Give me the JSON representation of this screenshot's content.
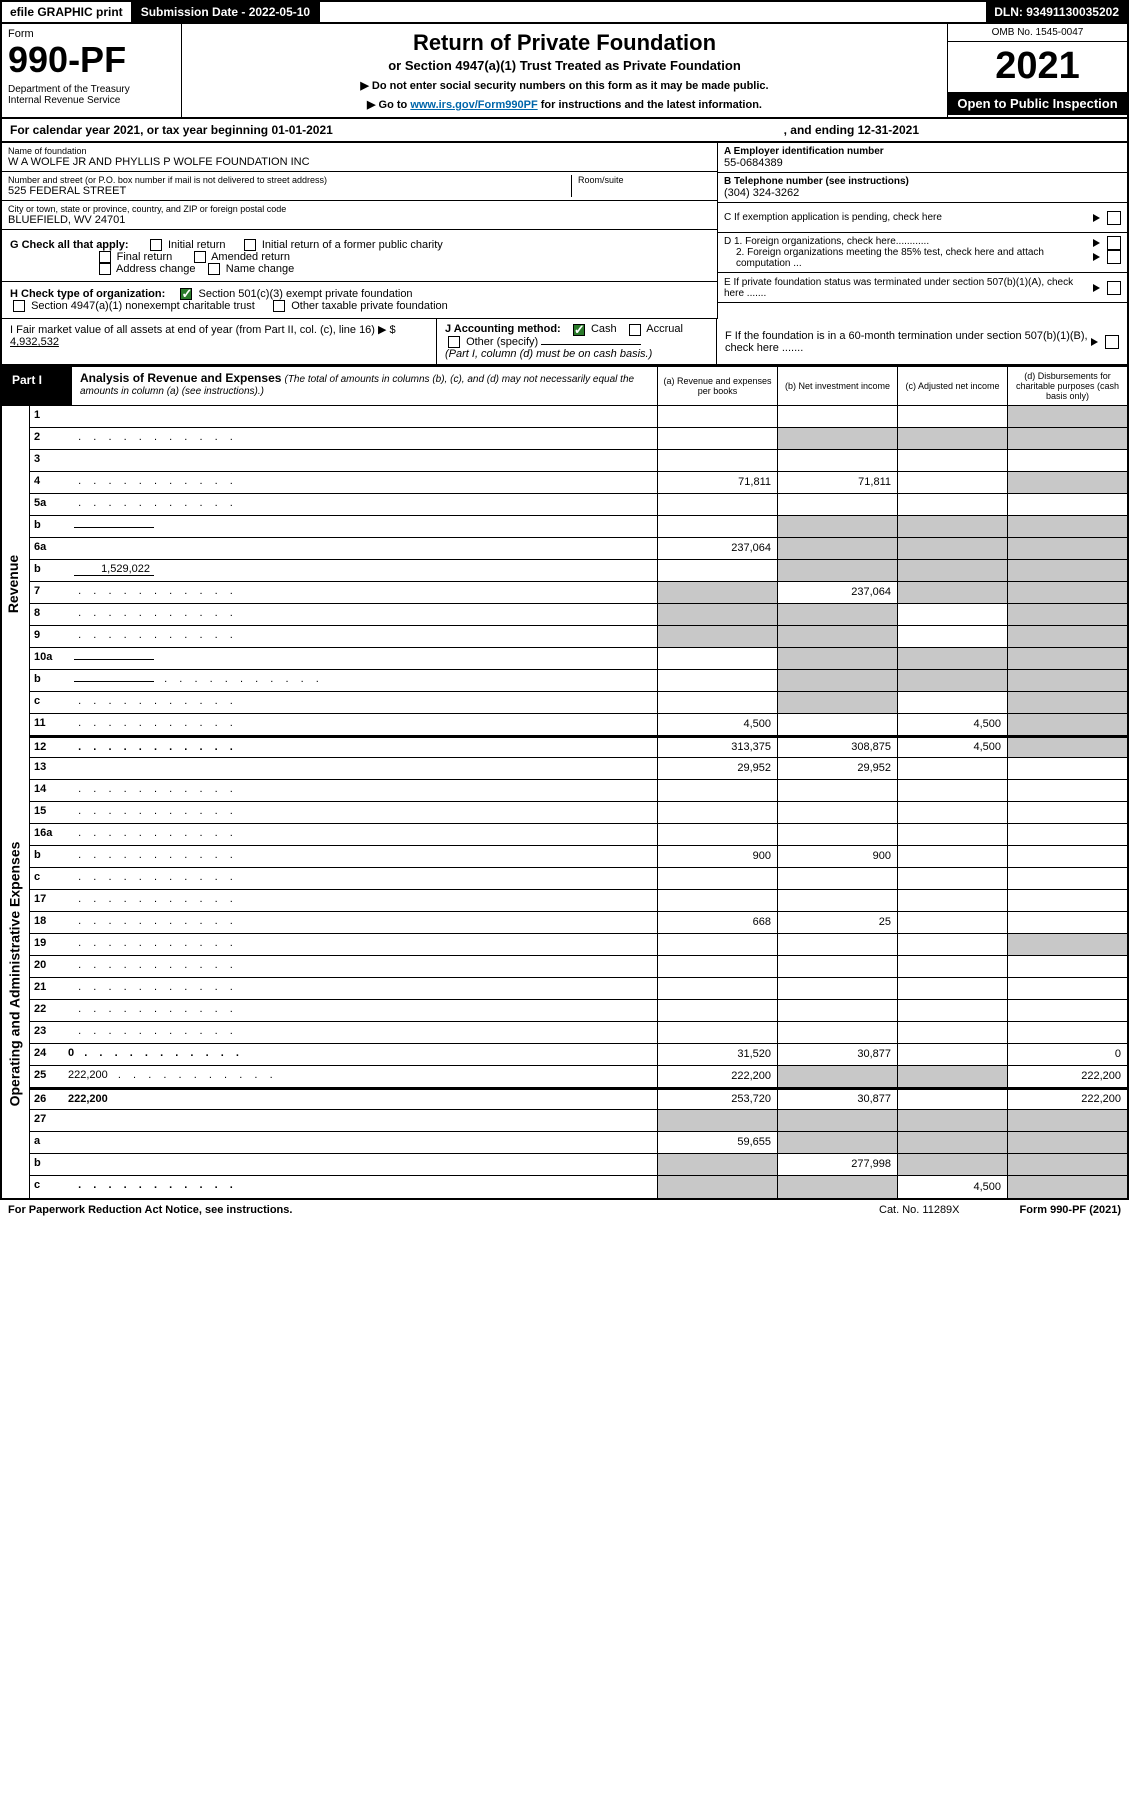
{
  "colors": {
    "black": "#000000",
    "white": "#ffffff",
    "grey_cell": "#c8c8c8",
    "link": "#0066aa",
    "check_green": "#2a7a2a"
  },
  "topbar": {
    "efile": "efile GRAPHIC print",
    "subdate": "Submission Date - 2022-05-10",
    "dln": "DLN: 93491130035202"
  },
  "header": {
    "form_label": "Form",
    "form_number": "990-PF",
    "dept1": "Department of the Treasury",
    "dept2": "Internal Revenue Service",
    "title": "Return of Private Foundation",
    "subtitle": "or Section 4947(a)(1) Trust Treated as Private Foundation",
    "note1": "▶ Do not enter social security numbers on this form as it may be made public.",
    "note2_pre": "▶ Go to ",
    "note2_link": "www.irs.gov/Form990PF",
    "note2_post": " for instructions and the latest information.",
    "omb": "OMB No. 1545-0047",
    "year": "2021",
    "open": "Open to Public Inspection"
  },
  "calyear": {
    "pre": "For calendar year 2021, or tax year beginning 01-01-2021",
    "end": ", and ending 12-31-2021"
  },
  "id_block": {
    "name_lbl": "Name of foundation",
    "name": "W A WOLFE JR AND PHYLLIS P WOLFE FOUNDATION INC",
    "addr_lbl": "Number and street (or P.O. box number if mail is not delivered to street address)",
    "addr": "525 FEDERAL STREET",
    "room_lbl": "Room/suite",
    "city_lbl": "City or town, state or province, country, and ZIP or foreign postal code",
    "city": "BLUEFIELD, WV  24701",
    "a_lbl": "A Employer identification number",
    "a_val": "55-0684389",
    "b_lbl": "B Telephone number (see instructions)",
    "b_val": "(304) 324-3262",
    "c_lbl": "C If exemption application is pending, check here"
  },
  "checks": {
    "g_lbl": "G Check all that apply:",
    "g_opts": [
      "Initial return",
      "Initial return of a former public charity",
      "Final return",
      "Amended return",
      "Address change",
      "Name change"
    ],
    "h_lbl": "H Check type of organization:",
    "h1": "Section 501(c)(3) exempt private foundation",
    "h2": "Section 4947(a)(1) nonexempt charitable trust",
    "h3": "Other taxable private foundation",
    "i_lbl": "I Fair market value of all assets at end of year (from Part II, col. (c), line 16) ▶ $",
    "i_val": "4,932,532",
    "j_lbl": "J Accounting method:",
    "j_cash": "Cash",
    "j_accrual": "Accrual",
    "j_other": "Other (specify)",
    "j_note": "(Part I, column (d) must be on cash basis.)",
    "d1": "D 1. Foreign organizations, check here............",
    "d2": "2. Foreign organizations meeting the 85% test, check here and attach computation ...",
    "e_lbl": "E  If private foundation status was terminated under section 507(b)(1)(A), check here .......",
    "f_lbl": "F  If the foundation is in a 60-month termination under section 507(b)(1)(B), check here .......",
    "arrow": "▶"
  },
  "part1": {
    "label": "Part I",
    "title": "Analysis of Revenue and Expenses",
    "title_note": "(The total of amounts in columns (b), (c), and (d) may not necessarily equal the amounts in column (a) (see instructions).)",
    "col_a": "(a)   Revenue and expenses per books",
    "col_b": "(b)   Net investment income",
    "col_c": "(c)   Adjusted net income",
    "col_d": "(d)   Disbursements for charitable purposes (cash basis only)"
  },
  "side_labels": {
    "revenue": "Revenue",
    "expenses": "Operating and Administrative Expenses"
  },
  "rows": [
    {
      "n": "1",
      "d": "",
      "a": "",
      "b": "",
      "c": "",
      "bg": false,
      "cg": false,
      "dg": true
    },
    {
      "n": "2",
      "d": "",
      "a": "",
      "b": "",
      "c": "",
      "bg": true,
      "cg": true,
      "dg": true,
      "dots": true
    },
    {
      "n": "3",
      "d": "",
      "a": "",
      "b": "",
      "c": ""
    },
    {
      "n": "4",
      "d": "",
      "a": "71,811",
      "b": "71,811",
      "c": "",
      "dg": true,
      "dots": true
    },
    {
      "n": "5a",
      "d": "",
      "a": "",
      "b": "",
      "c": "",
      "dots": true
    },
    {
      "n": "b",
      "d": "",
      "a": "",
      "b": "",
      "c": "",
      "bg": true,
      "cg": true,
      "dg": true,
      "inline": ""
    },
    {
      "n": "6a",
      "d": "",
      "a": "237,064",
      "b": "",
      "c": "",
      "bg": true,
      "cg": true,
      "dg": true
    },
    {
      "n": "b",
      "d": "",
      "a": "",
      "b": "",
      "c": "",
      "bg": true,
      "cg": true,
      "dg": true,
      "inline": "1,529,022"
    },
    {
      "n": "7",
      "d": "",
      "a": "",
      "b": "237,064",
      "c": "",
      "ag": true,
      "cg": true,
      "dg": true,
      "dots": true
    },
    {
      "n": "8",
      "d": "",
      "a": "",
      "b": "",
      "c": "",
      "ag": true,
      "bg": true,
      "dg": true,
      "dots": true
    },
    {
      "n": "9",
      "d": "",
      "a": "",
      "b": "",
      "c": "",
      "ag": true,
      "bg": true,
      "dg": true,
      "dots": true
    },
    {
      "n": "10a",
      "d": "",
      "a": "",
      "b": "",
      "c": "",
      "bg": true,
      "cg": true,
      "dg": true,
      "inline": ""
    },
    {
      "n": "b",
      "d": "",
      "a": "",
      "b": "",
      "c": "",
      "bg": true,
      "cg": true,
      "dg": true,
      "inline": "",
      "dots": true
    },
    {
      "n": "c",
      "d": "",
      "a": "",
      "b": "",
      "c": "",
      "bg": true,
      "dg": true,
      "dots": true
    },
    {
      "n": "11",
      "d": "",
      "a": "4,500",
      "b": "",
      "c": "4,500",
      "dg": true,
      "dots": true
    },
    {
      "n": "12",
      "d": "",
      "a": "313,375",
      "b": "308,875",
      "c": "4,500",
      "bold": true,
      "dg": true,
      "dots": true,
      "sec": true
    },
    {
      "n": "13",
      "d": "",
      "a": "29,952",
      "b": "29,952",
      "c": ""
    },
    {
      "n": "14",
      "d": "",
      "a": "",
      "b": "",
      "c": "",
      "dots": true
    },
    {
      "n": "15",
      "d": "",
      "a": "",
      "b": "",
      "c": "",
      "dots": true
    },
    {
      "n": "16a",
      "d": "",
      "a": "",
      "b": "",
      "c": "",
      "dots": true
    },
    {
      "n": "b",
      "d": "",
      "a": "900",
      "b": "900",
      "c": "",
      "dots": true
    },
    {
      "n": "c",
      "d": "",
      "a": "",
      "b": "",
      "c": "",
      "dots": true
    },
    {
      "n": "17",
      "d": "",
      "a": "",
      "b": "",
      "c": "",
      "dots": true
    },
    {
      "n": "18",
      "d": "",
      "a": "668",
      "b": "25",
      "c": "",
      "dots": true
    },
    {
      "n": "19",
      "d": "",
      "a": "",
      "b": "",
      "c": "",
      "dg": true,
      "dots": true
    },
    {
      "n": "20",
      "d": "",
      "a": "",
      "b": "",
      "c": "",
      "dots": true
    },
    {
      "n": "21",
      "d": "",
      "a": "",
      "b": "",
      "c": "",
      "dots": true
    },
    {
      "n": "22",
      "d": "",
      "a": "",
      "b": "",
      "c": "",
      "dots": true
    },
    {
      "n": "23",
      "d": "",
      "a": "",
      "b": "",
      "c": "",
      "dots": true
    },
    {
      "n": "24",
      "d": "0",
      "a": "31,520",
      "b": "30,877",
      "c": "",
      "bold": true,
      "dots": true
    },
    {
      "n": "25",
      "d": "222,200",
      "a": "222,200",
      "b": "",
      "c": "",
      "bg": true,
      "cg": true,
      "dots": true
    },
    {
      "n": "26",
      "d": "222,200",
      "a": "253,720",
      "b": "30,877",
      "c": "",
      "bold": true,
      "sec": true
    },
    {
      "n": "27",
      "d": "",
      "a": "",
      "b": "",
      "c": "",
      "bg": true,
      "cg": true,
      "dg": true,
      "ag": true
    },
    {
      "n": "a",
      "d": "",
      "a": "59,655",
      "b": "",
      "c": "",
      "bold": true,
      "bg": true,
      "cg": true,
      "dg": true
    },
    {
      "n": "b",
      "d": "",
      "a": "",
      "b": "277,998",
      "c": "",
      "bold": true,
      "ag": true,
      "cg": true,
      "dg": true
    },
    {
      "n": "c",
      "d": "",
      "a": "",
      "b": "",
      "c": "4,500",
      "bold": true,
      "ag": true,
      "bg": true,
      "dg": true,
      "dots": true
    }
  ],
  "footer": {
    "pra": "For Paperwork Reduction Act Notice, see instructions.",
    "cat": "Cat. No. 11289X",
    "form": "Form 990-PF (2021)"
  }
}
